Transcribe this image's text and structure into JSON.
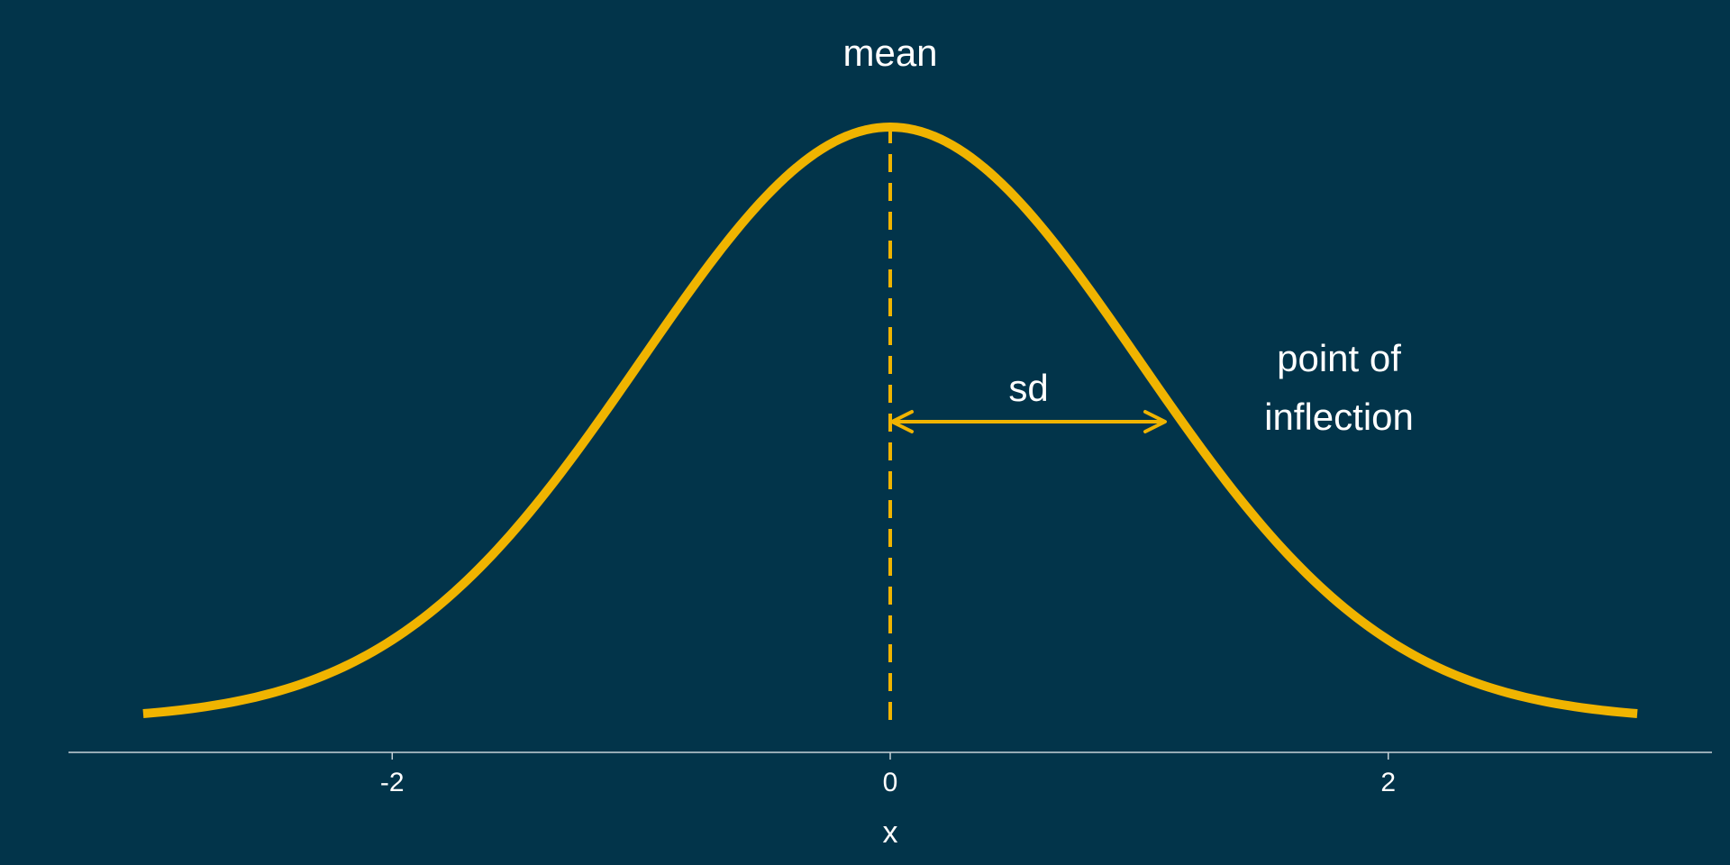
{
  "chart_data": {
    "type": "line",
    "title": "",
    "xlabel": "x",
    "ylabel": "",
    "xlim": [
      -3.3,
      3.3
    ],
    "ylim": [
      0,
      0.4
    ],
    "x_ticks": [
      -2,
      0,
      2
    ],
    "x_tick_labels": [
      "-2",
      "0",
      "2"
    ],
    "y_axis_visible": false,
    "grid": false,
    "legend": "none",
    "series": [
      {
        "distribution": "normal",
        "mean": 0,
        "sd": 1,
        "x_range": [
          -3,
          3
        ],
        "color": "#f0b400"
      }
    ],
    "mean_line": {
      "x": 0,
      "style": "dashed",
      "color": "#f0b400"
    },
    "sd_arrow": {
      "from_x": 0,
      "to_x": 1.1,
      "y": 0.24,
      "color": "#f0b400"
    },
    "annotations": {
      "mean": "mean",
      "sd": "sd",
      "inflection_line1": "point of",
      "inflection_line2": "inflection"
    },
    "colors": {
      "background": "#02344a",
      "curve": "#f0b400",
      "text": "#ffffff",
      "axis": "#c8d2d8"
    }
  }
}
